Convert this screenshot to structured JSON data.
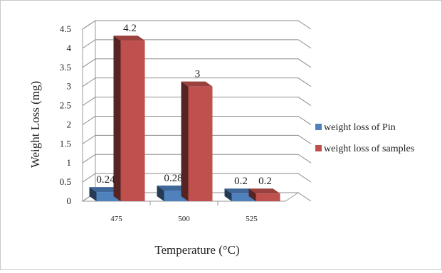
{
  "chart_data": {
    "type": "bar",
    "title": "",
    "xlabel": "Temperature (°C)",
    "ylabel": "Weight Loss (mg)",
    "ylim": [
      0,
      4.5
    ],
    "yticks": [
      "0",
      "0.5",
      "1",
      "1.5",
      "2",
      "2.5",
      "3",
      "3.5",
      "4",
      "4.5"
    ],
    "categories": [
      "475",
      "500",
      "525"
    ],
    "series": [
      {
        "name": "weight loss of Pin",
        "values": [
          0.24,
          0.28,
          0.2
        ],
        "labels": [
          "0.24",
          "0.28",
          "0.2"
        ],
        "color": "#4f81bd"
      },
      {
        "name": "weight loss of samples",
        "values": [
          4.2,
          3,
          0.2
        ],
        "labels": [
          "4.2",
          "3",
          "0.2"
        ],
        "color": "#c0504d"
      }
    ],
    "legend_position": "right",
    "grid": true,
    "style": "3d-clustered-column"
  }
}
